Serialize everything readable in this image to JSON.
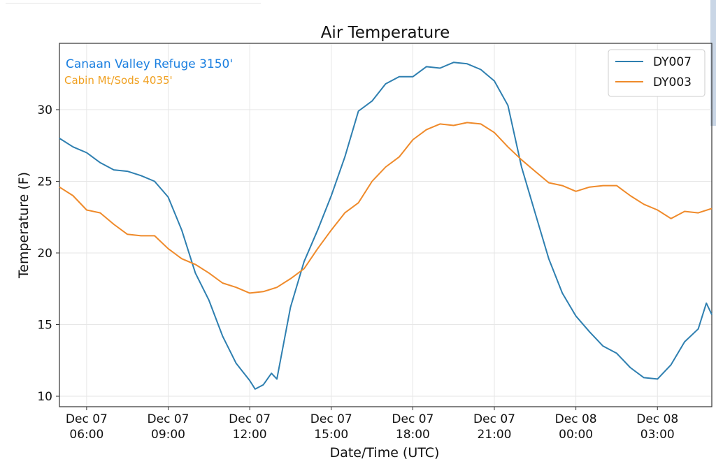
{
  "chart_data": {
    "type": "line",
    "title": "Air Temperature",
    "xlabel": "Date/Time (UTC)",
    "ylabel": "Temperature (F)",
    "x_unit": "hours since Dec 07 05:00 UTC",
    "xlim": [
      0,
      24
    ],
    "ylim": [
      9.27,
      34.63
    ],
    "grid": true,
    "legend_placement": "top-right",
    "yticks": [
      10,
      15,
      20,
      25,
      30
    ],
    "xticks": [
      {
        "value": 1,
        "line1": "Dec 07",
        "line2": "06:00"
      },
      {
        "value": 4,
        "line1": "Dec 07",
        "line2": "09:00"
      },
      {
        "value": 7,
        "line1": "Dec 07",
        "line2": "12:00"
      },
      {
        "value": 10,
        "line1": "Dec 07",
        "line2": "15:00"
      },
      {
        "value": 13,
        "line1": "Dec 07",
        "line2": "18:00"
      },
      {
        "value": 16,
        "line1": "Dec 07",
        "line2": "21:00"
      },
      {
        "value": 19,
        "line1": "Dec 08",
        "line2": "00:00"
      },
      {
        "value": 22,
        "line1": "Dec 08",
        "line2": "03:00"
      }
    ],
    "annotations": [
      {
        "text": "Canaan Valley Refuge 3150'",
        "color": "#1a7fe0"
      },
      {
        "text": "Cabin Mt/Sods 4035'",
        "color": "#f0a020"
      }
    ],
    "series": [
      {
        "name": "DY007",
        "color": "#2e7fb0",
        "x": [
          0,
          0.5,
          1,
          1.5,
          2,
          2.5,
          3,
          3.5,
          4,
          4.5,
          5,
          5.5,
          6,
          6.5,
          7,
          7.2,
          7.5,
          7.8,
          8,
          8.5,
          9,
          9.5,
          10,
          10.5,
          11,
          11.5,
          12,
          12.5,
          13,
          13.5,
          14,
          14.5,
          15,
          15.5,
          16,
          16.5,
          17,
          17.5,
          18,
          18.5,
          19,
          19.5,
          20,
          20.5,
          21,
          21.5,
          22,
          22.5,
          23,
          23.5,
          23.8,
          24
        ],
        "values": [
          28.0,
          27.4,
          27.0,
          26.3,
          25.8,
          25.7,
          25.4,
          25.0,
          23.9,
          21.6,
          18.6,
          16.7,
          14.2,
          12.3,
          11.1,
          10.5,
          10.8,
          11.6,
          11.2,
          16.2,
          19.4,
          21.6,
          24.0,
          26.7,
          29.9,
          30.6,
          31.8,
          32.3,
          32.3,
          33.0,
          32.9,
          33.3,
          33.2,
          32.8,
          32.0,
          30.3,
          26.0,
          22.8,
          19.6,
          17.2,
          15.6,
          14.5,
          13.5,
          13.0,
          12.0,
          11.3,
          11.2,
          12.2,
          13.8,
          14.7,
          16.5,
          15.7
        ]
      },
      {
        "name": "DY003",
        "color": "#ef8a2a",
        "x": [
          0,
          0.5,
          1,
          1.5,
          2,
          2.5,
          3,
          3.5,
          4,
          4.5,
          5,
          5.5,
          6,
          6.5,
          7,
          7.5,
          8,
          8.5,
          9,
          9.5,
          10,
          10.5,
          11,
          11.5,
          12,
          12.5,
          13,
          13.5,
          14,
          14.5,
          15,
          15.5,
          16,
          16.5,
          17,
          17.5,
          18,
          18.5,
          19,
          19.5,
          20,
          20.5,
          21,
          21.5,
          22,
          22.5,
          23,
          23.5,
          24
        ],
        "values": [
          24.6,
          24.0,
          23.0,
          22.8,
          22.0,
          21.3,
          21.2,
          21.2,
          20.3,
          19.6,
          19.2,
          18.6,
          17.9,
          17.6,
          17.2,
          17.3,
          17.6,
          18.2,
          18.9,
          20.3,
          21.6,
          22.8,
          23.5,
          25.0,
          26.0,
          26.7,
          27.9,
          28.6,
          29.0,
          28.9,
          29.1,
          29.0,
          28.4,
          27.4,
          26.5,
          25.7,
          24.9,
          24.7,
          24.3,
          24.6,
          24.7,
          24.7,
          24.0,
          23.4,
          23.0,
          22.4,
          22.9,
          22.8,
          23.1
        ]
      }
    ]
  }
}
